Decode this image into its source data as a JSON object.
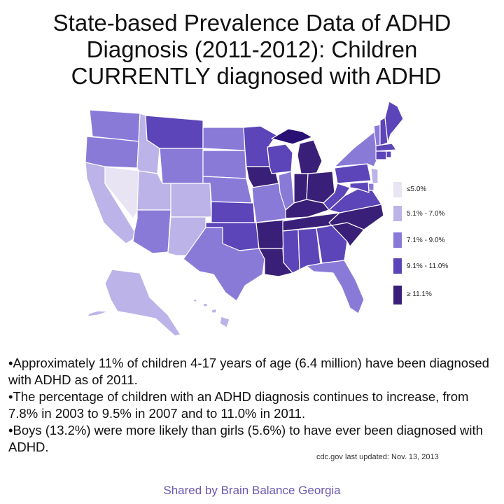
{
  "title": {
    "line1": "State-based Prevalence Data of ADHD",
    "line2": "Diagnosis (2011-2012): Children",
    "line3": "CURRENTLY diagnosed with ADHD"
  },
  "legend": {
    "items": [
      {
        "label": "≤5.0%",
        "color": "#e8e4f4"
      },
      {
        "label": "5.1% - 7.0%",
        "color": "#bcb3e8"
      },
      {
        "label": "7.1% - 9.0%",
        "color": "#8a7ad8"
      },
      {
        "label": "9.1% - 11.0%",
        "color": "#5b45b8"
      },
      {
        "label": "≥ 11.1%",
        "color": "#3a1f78"
      }
    ]
  },
  "map": {
    "class_colors": [
      "#e8e4f4",
      "#bcb3e8",
      "#8a7ad8",
      "#5b45b8",
      "#3a1f78"
    ],
    "highlight_color": "#2a0f75",
    "states": {
      "WA": 2,
      "OR": 2,
      "CA": 1,
      "NV": 0,
      "ID": 1,
      "MT": 3,
      "WY": 2,
      "UT": 1,
      "AZ": 2,
      "CO": 1,
      "NM": 1,
      "ND": 2,
      "SD": 2,
      "NE": 2,
      "KS": 3,
      "OK": 3,
      "TX": 2,
      "MN": 3,
      "IA": 4,
      "MO": 2,
      "AR": 4,
      "LA": 4,
      "WI": 3,
      "IL": 2,
      "MI": 4,
      "IN": 4,
      "OH": 4,
      "KY": 4,
      "TN": 4,
      "MS": 3,
      "AL": 3,
      "GA": 3,
      "FL": 2,
      "SC": 4,
      "NC": 4,
      "VA": 3,
      "WV": 3,
      "PA": 3,
      "NY": 2,
      "NJ": 1,
      "DE": 2,
      "MD": 3,
      "VT": 2,
      "NH": 3,
      "ME": 3,
      "MA": 3,
      "CT": 3,
      "RI": 3,
      "AK": 1,
      "HI": 1
    }
  },
  "bullets": [
    "•Approximately 11% of children 4-17 years of age (6.4 million) have been diagnosed with ADHD as of 2011.",
    "•The percentage of children with an ADHD diagnosis continues to increase, from 7.8% in 2003 to 9.5% in 2007 and to 11.0% in 2011.",
    "•Boys (13.2%) were more likely than girls (5.6%) to have ever been diagnosed with ADHD."
  ],
  "source": "cdc.gov last updated: Nov. 13, 2013",
  "credit": "Shared by Brain Balance Georgia"
}
